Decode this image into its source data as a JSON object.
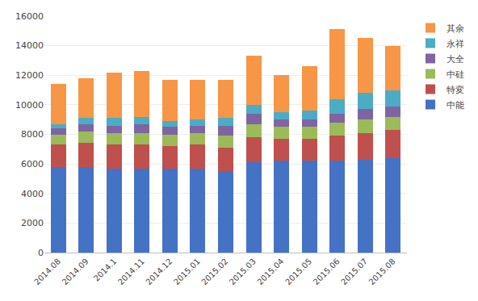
{
  "chart_data": {
    "type": "bar",
    "stacked": true,
    "categories": [
      "2014.08",
      "2014.09",
      "2014.1",
      "2014.11",
      "2014.12",
      "2015.01",
      "2015.02",
      "2015.03",
      "2015.04",
      "2015.05",
      "2015.06",
      "2015.07",
      "2015.08"
    ],
    "series": [
      {
        "name": "中能",
        "color": "#4472C4",
        "values": [
          5800,
          5800,
          5700,
          5700,
          5700,
          5700,
          5500,
          6100,
          6200,
          6200,
          6200,
          6300,
          6400
        ]
      },
      {
        "name": "特変",
        "color": "#C0504D",
        "values": [
          1500,
          1600,
          1600,
          1600,
          1500,
          1600,
          1600,
          1700,
          1500,
          1500,
          1700,
          1800,
          1900
        ]
      },
      {
        "name": "中硅",
        "color": "#9BBB59",
        "values": [
          700,
          800,
          800,
          800,
          800,
          800,
          800,
          900,
          800,
          800,
          900,
          900,
          900
        ]
      },
      {
        "name": "大全",
        "color": "#8064A2",
        "values": [
          400,
          500,
          500,
          600,
          500,
          500,
          700,
          700,
          500,
          500,
          600,
          700,
          700
        ]
      },
      {
        "name": "永祥",
        "color": "#4BACC6",
        "values": [
          300,
          400,
          500,
          500,
          400,
          400,
          500,
          600,
          500,
          600,
          1000,
          1100,
          1100
        ]
      },
      {
        "name": "其余",
        "color": "#F79646",
        "values": [
          2700,
          2700,
          3100,
          3100,
          2800,
          2700,
          2600,
          3300,
          2500,
          3000,
          4700,
          3700,
          3000
        ]
      }
    ],
    "ylim": [
      0,
      16000
    ],
    "yticks": [
      0,
      2000,
      4000,
      6000,
      8000,
      10000,
      12000,
      14000,
      16000
    ],
    "grid": true,
    "legend": "right"
  }
}
